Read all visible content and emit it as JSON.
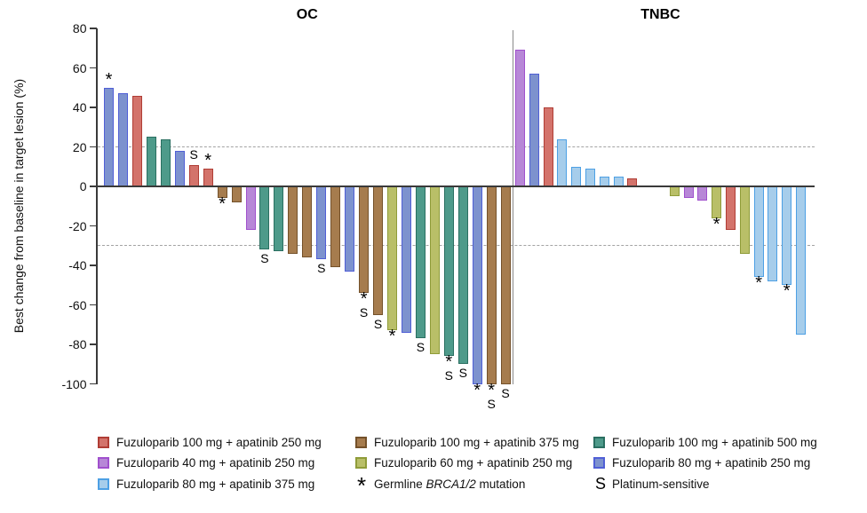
{
  "chart_data": {
    "type": "bar",
    "subtype": "waterfall",
    "ylabel": "Best change from baseline in target lesion (%)",
    "ylim": [
      -100,
      80
    ],
    "yticks": [
      80,
      60,
      40,
      20,
      0,
      -20,
      -40,
      -60,
      -80,
      -100
    ],
    "reference_lines": [
      20,
      -30
    ],
    "marker_meanings": {
      "*": "Germline BRCA1/2 mutation",
      "S": "Platinum-sensitive"
    },
    "panels": [
      {
        "title": "OC",
        "bars": [
          {
            "value": 50,
            "color": "blue",
            "marks": [
              "*"
            ]
          },
          {
            "value": 47,
            "color": "blue"
          },
          {
            "value": 46,
            "color": "red"
          },
          {
            "value": 25,
            "color": "teal"
          },
          {
            "value": 24,
            "color": "teal"
          },
          {
            "value": 18,
            "color": "blue"
          },
          {
            "value": 11,
            "color": "red",
            "marks": [
              "S"
            ]
          },
          {
            "value": 9,
            "color": "red",
            "marks": [
              "*"
            ]
          },
          {
            "value": -6,
            "color": "brown",
            "marks": [
              "*"
            ]
          },
          {
            "value": -8,
            "color": "brown"
          },
          {
            "value": -22,
            "color": "purple"
          },
          {
            "value": -32,
            "color": "teal",
            "marks": [
              "S"
            ]
          },
          {
            "value": -33,
            "color": "teal"
          },
          {
            "value": -34,
            "color": "brown"
          },
          {
            "value": -36,
            "color": "brown"
          },
          {
            "value": -37,
            "color": "blue",
            "marks": [
              "S"
            ]
          },
          {
            "value": -41,
            "color": "brown"
          },
          {
            "value": -43,
            "color": "blue"
          },
          {
            "value": -54,
            "color": "brown",
            "marks": [
              "*",
              "S"
            ]
          },
          {
            "value": -65,
            "color": "brown",
            "marks": [
              "S"
            ]
          },
          {
            "value": -73,
            "color": "olive",
            "marks": [
              "*"
            ]
          },
          {
            "value": -74,
            "color": "blue"
          },
          {
            "value": -77,
            "color": "teal",
            "marks": [
              "S"
            ]
          },
          {
            "value": -85,
            "color": "olive"
          },
          {
            "value": -86,
            "color": "teal",
            "marks": [
              "*",
              "S"
            ]
          },
          {
            "value": -90,
            "color": "teal",
            "marks": [
              "S"
            ]
          },
          {
            "value": -100,
            "color": "blue",
            "marks": [
              "*"
            ]
          },
          {
            "value": -100,
            "color": "brown",
            "marks": [
              "*",
              "S"
            ]
          },
          {
            "value": -100,
            "color": "brown",
            "marks": [
              "S"
            ]
          }
        ]
      },
      {
        "title": "TNBC",
        "bars": [
          {
            "value": 69,
            "color": "purple"
          },
          {
            "value": 57,
            "color": "blue"
          },
          {
            "value": 40,
            "color": "red"
          },
          {
            "value": 24,
            "color": "lightblue"
          },
          {
            "value": 10,
            "color": "lightblue"
          },
          {
            "value": 9,
            "color": "lightblue"
          },
          {
            "value": 5,
            "color": "lightblue"
          },
          {
            "value": 5,
            "color": "lightblue"
          },
          {
            "value": 4,
            "color": "red"
          },
          {
            "gap": true
          },
          {
            "gap": true
          },
          {
            "value": -5,
            "color": "olive"
          },
          {
            "value": -6,
            "color": "purple"
          },
          {
            "value": -7,
            "color": "purple"
          },
          {
            "value": -16,
            "color": "olive",
            "marks": [
              "*"
            ]
          },
          {
            "value": -22,
            "color": "red"
          },
          {
            "value": -34,
            "color": "olive"
          },
          {
            "value": -46,
            "color": "lightblue",
            "marks": [
              "*"
            ]
          },
          {
            "value": -48,
            "color": "lightblue"
          },
          {
            "value": -50,
            "color": "lightblue",
            "marks": [
              "*"
            ]
          },
          {
            "value": -75,
            "color": "lightblue"
          }
        ]
      }
    ]
  },
  "colors": {
    "red": {
      "fill": "#d3736b",
      "border": "#b03d35"
    },
    "brown": {
      "fill": "#a67c4e",
      "border": "#74512a"
    },
    "teal": {
      "fill": "#4e9a8a",
      "border": "#2a6f61"
    },
    "purple": {
      "fill": "#b787d7",
      "border": "#a050cd"
    },
    "olive": {
      "fill": "#b9bf68",
      "border": "#8f9c39"
    },
    "blue": {
      "fill": "#7d92ce",
      "border": "#505fd6"
    },
    "lightblue": {
      "fill": "#a6cdeb",
      "border": "#4da0e4"
    }
  },
  "legend": {
    "items": [
      {
        "type": "swatch",
        "color": "red",
        "label": "Fuzuloparib 100 mg + apatinib 250 mg",
        "col": 0,
        "row": 0
      },
      {
        "type": "swatch",
        "color": "brown",
        "label": "Fuzuloparib 100 mg + apatinib 375 mg",
        "col": 1,
        "row": 0
      },
      {
        "type": "swatch",
        "color": "teal",
        "label": "Fuzuloparib 100 mg + apatinib 500 mg",
        "col": 2,
        "row": 0
      },
      {
        "type": "swatch",
        "color": "purple",
        "label": "Fuzuloparib 40 mg + apatinib 250 mg",
        "col": 0,
        "row": 1
      },
      {
        "type": "swatch",
        "color": "olive",
        "label": "Fuzuloparib 60 mg + apatinib 250 mg",
        "col": 1,
        "row": 1
      },
      {
        "type": "swatch",
        "color": "blue",
        "label": "Fuzuloparib 80 mg + apatinib 250 mg",
        "col": 2,
        "row": 1
      },
      {
        "type": "swatch",
        "color": "lightblue",
        "label": "Fuzuloparib 80 mg + apatinib 375 mg",
        "col": 0,
        "row": 2
      },
      {
        "type": "symbol",
        "symbol": "*",
        "label_parts": [
          "Germline ",
          "BRCA1/2",
          " mutation"
        ],
        "italic_part": 1,
        "col": 1,
        "row": 2
      },
      {
        "type": "symbol",
        "symbol": "S",
        "label": "Platinum-sensitive",
        "col": 2,
        "row": 2
      }
    ]
  }
}
